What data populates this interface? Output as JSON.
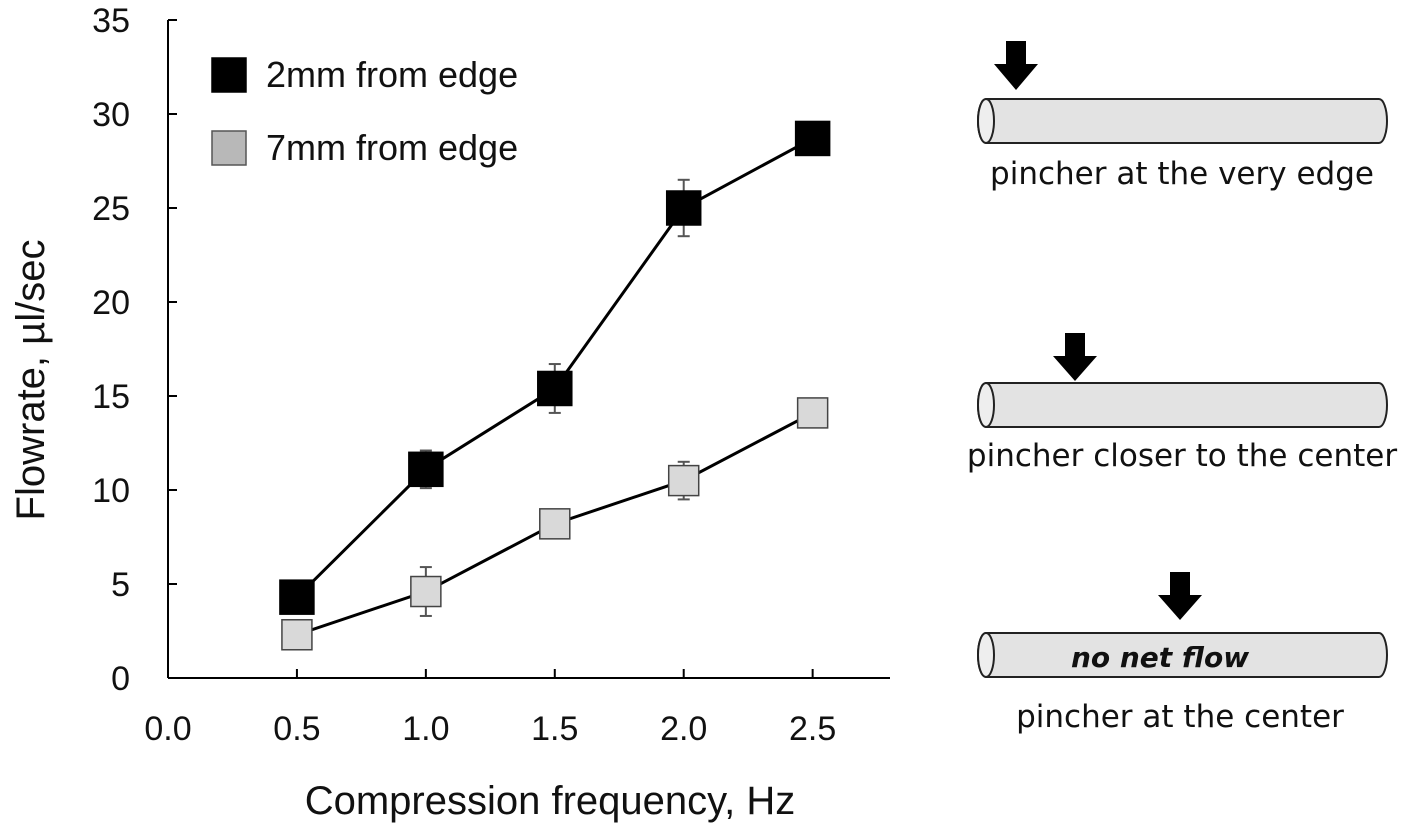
{
  "chart_data": {
    "type": "line",
    "title": "",
    "xlabel": "Compression frequency, Hz",
    "ylabel": "Flowrate, µl/sec",
    "xlim": [
      0.0,
      2.8
    ],
    "ylim": [
      0,
      35
    ],
    "xticks": [
      0.0,
      0.5,
      1.0,
      1.5,
      2.0,
      2.5
    ],
    "xtick_labels": [
      "0.0",
      "0.5",
      "1.0",
      "1.5",
      "2.0",
      "2.5"
    ],
    "yticks": [
      0,
      5,
      10,
      15,
      20,
      25,
      30,
      35
    ],
    "ytick_labels": [
      "0",
      "5",
      "10",
      "15",
      "20",
      "25",
      "30",
      "35"
    ],
    "grid": false,
    "legend_position": "top-left",
    "series": [
      {
        "name": "2mm from edge",
        "color": "#000000",
        "marker": "square",
        "x": [
          0.5,
          1.0,
          1.5,
          2.0,
          2.5
        ],
        "y": [
          4.3,
          11.1,
          15.4,
          25.0,
          28.7
        ],
        "error": [
          0.5,
          1.0,
          1.3,
          1.5,
          0.6
        ]
      },
      {
        "name": "7mm from edge",
        "color": "#d9d9d9",
        "marker": "square",
        "x": [
          0.5,
          1.0,
          1.5,
          2.0,
          2.5
        ],
        "y": [
          2.3,
          4.6,
          8.2,
          10.5,
          14.1
        ],
        "error": [
          0.4,
          1.3,
          0.3,
          1.0,
          0.3
        ]
      }
    ]
  },
  "diagrams": [
    {
      "caption": "pincher at the very edge",
      "inner_text": ""
    },
    {
      "caption": "pincher closer to the center",
      "inner_text": ""
    },
    {
      "caption": "pincher at the center",
      "inner_text": "no net flow"
    }
  ]
}
